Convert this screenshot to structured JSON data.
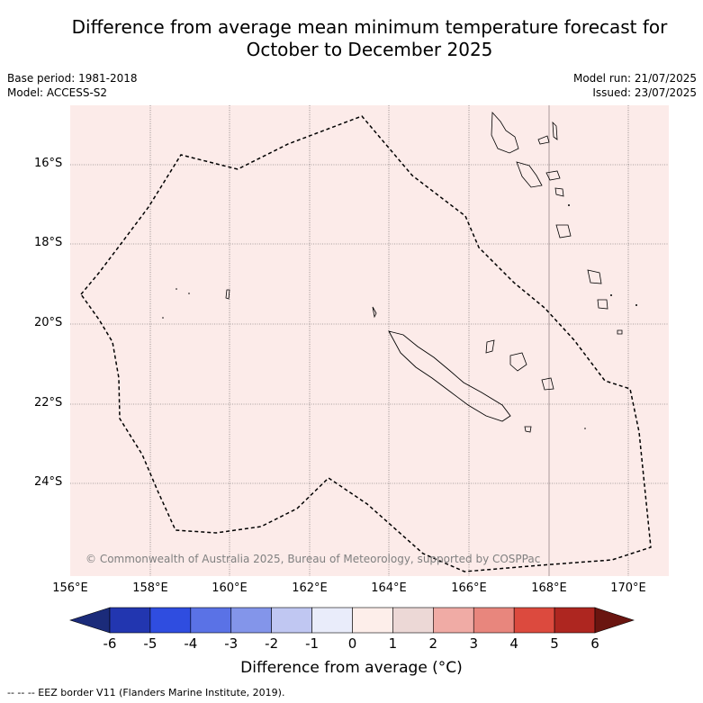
{
  "title": {
    "line1": "Difference from average mean minimum temperature forecast for",
    "line2": "October to December 2025"
  },
  "meta": {
    "base_period": "Base period: 1981-2018",
    "model": "Model: ACCESS-S2",
    "model_run": "Model run: 21/07/2025",
    "issued": "Issued: 23/07/2025"
  },
  "map": {
    "lat_labels": [
      "16°S",
      "18°S",
      "20°S",
      "22°S",
      "24°S"
    ],
    "lon_labels": [
      "156°E",
      "158°E",
      "160°E",
      "162°E",
      "164°E",
      "166°E",
      "168°E",
      "170°E"
    ],
    "background_color": "#fcebe9",
    "copyright": "© Commonwealth of Australia 2025, Bureau of Meteorology, supported by COSPPac"
  },
  "colorbar": {
    "labels": [
      "-6",
      "-5",
      "-4",
      "-3",
      "-2",
      "-1",
      "0",
      "1",
      "2",
      "3",
      "4",
      "5",
      "6"
    ],
    "colors": [
      "#1b2b7a",
      "#2236b0",
      "#2f4de0",
      "#5a72e6",
      "#8395ea",
      "#c0c7f2",
      "#e9ecfa",
      "#fdeeea",
      "#ecd8d6",
      "#f0aba5",
      "#e8867d",
      "#dc4a3e",
      "#ae2620",
      "#6a1510"
    ],
    "title": "Difference from average (°C)"
  },
  "footnote": "--  --  -- EEZ border V11 (Flanders Marine Institute, 2019)."
}
